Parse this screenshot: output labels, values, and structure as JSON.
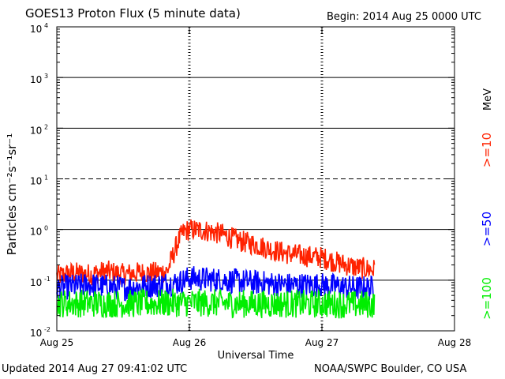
{
  "header": {
    "title": "GOES13 Proton Flux (5 minute data)",
    "begin": "Begin: 2014 Aug 25 0000 UTC"
  },
  "footer": {
    "updated": "Updated 2014 Aug 27 09:41:02 UTC",
    "credit": "NOAA/SWPC Boulder, CO USA"
  },
  "chart_data": {
    "type": "line",
    "title": "GOES13 Proton Flux (5 minute data)",
    "xlabel": "Universal Time",
    "ylabel": "Particles cm⁻²s⁻¹sr⁻¹",
    "yscale": "log",
    "ylim": [
      0.01,
      10000
    ],
    "xlim": [
      "2014-08-25",
      "2014-08-28"
    ],
    "x_ticks": [
      "Aug 25",
      "Aug 26",
      "Aug 27",
      "Aug 28"
    ],
    "y_ticks": [
      {
        "base": "10",
        "exp": "-2",
        "value": 0.01
      },
      {
        "base": "10",
        "exp": "-1",
        "value": 0.1
      },
      {
        "base": "10",
        "exp": "0",
        "value": 1
      },
      {
        "base": "10",
        "exp": "1",
        "value": 10
      },
      {
        "base": "10",
        "exp": "2",
        "value": 100
      },
      {
        "base": "10",
        "exp": "3",
        "value": 1000
      },
      {
        "base": "10",
        "exp": "4",
        "value": 10000
      }
    ],
    "threshold_lines": [
      {
        "value": 10,
        "style": "dashed"
      },
      {
        "value": 0.1,
        "style": "solid"
      },
      {
        "value": 1,
        "style": "solid"
      },
      {
        "value": 100,
        "style": "solid"
      },
      {
        "value": 1000,
        "style": "solid"
      }
    ],
    "legend_unit": "MeV",
    "series": [
      {
        "name": ">=10",
        "color": "#ff2200",
        "points": [
          [
            "2014-08-25 00:00",
            0.12
          ],
          [
            "2014-08-25 03:00",
            0.14
          ],
          [
            "2014-08-25 06:00",
            0.13
          ],
          [
            "2014-08-25 09:00",
            0.15
          ],
          [
            "2014-08-25 12:00",
            0.13
          ],
          [
            "2014-08-25 15:00",
            0.14
          ],
          [
            "2014-08-25 18:00",
            0.14
          ],
          [
            "2014-08-25 20:00",
            0.15
          ],
          [
            "2014-08-25 21:00",
            0.3
          ],
          [
            "2014-08-25 22:00",
            0.6
          ],
          [
            "2014-08-25 23:00",
            0.9
          ],
          [
            "2014-08-26 00:00",
            1.0
          ],
          [
            "2014-08-26 03:00",
            0.95
          ],
          [
            "2014-08-26 06:00",
            0.8
          ],
          [
            "2014-08-26 09:00",
            0.6
          ],
          [
            "2014-08-26 12:00",
            0.5
          ],
          [
            "2014-08-26 15:00",
            0.4
          ],
          [
            "2014-08-26 18:00",
            0.33
          ],
          [
            "2014-08-26 21:00",
            0.3
          ],
          [
            "2014-08-27 00:00",
            0.28
          ],
          [
            "2014-08-27 03:00",
            0.22
          ],
          [
            "2014-08-27 06:00",
            0.18
          ],
          [
            "2014-08-27 09:30",
            0.16
          ]
        ]
      },
      {
        "name": ">=50",
        "color": "#0000ff",
        "points": [
          [
            "2014-08-25 00:00",
            0.07
          ],
          [
            "2014-08-25 06:00",
            0.08
          ],
          [
            "2014-08-25 12:00",
            0.07
          ],
          [
            "2014-08-25 18:00",
            0.08
          ],
          [
            "2014-08-25 22:00",
            0.09
          ],
          [
            "2014-08-26 00:00",
            0.11
          ],
          [
            "2014-08-26 06:00",
            0.1
          ],
          [
            "2014-08-26 12:00",
            0.09
          ],
          [
            "2014-08-26 18:00",
            0.08
          ],
          [
            "2014-08-27 00:00",
            0.08
          ],
          [
            "2014-08-27 06:00",
            0.07
          ],
          [
            "2014-08-27 09:30",
            0.07
          ]
        ]
      },
      {
        "name": ">=100",
        "color": "#00ee00",
        "points": [
          [
            "2014-08-25 00:00",
            0.035
          ],
          [
            "2014-08-25 06:00",
            0.035
          ],
          [
            "2014-08-25 12:00",
            0.034
          ],
          [
            "2014-08-25 18:00",
            0.035
          ],
          [
            "2014-08-26 00:00",
            0.036
          ],
          [
            "2014-08-26 06:00",
            0.035
          ],
          [
            "2014-08-26 12:00",
            0.034
          ],
          [
            "2014-08-26 18:00",
            0.034
          ],
          [
            "2014-08-27 00:00",
            0.034
          ],
          [
            "2014-08-27 06:00",
            0.033
          ],
          [
            "2014-08-27 09:30",
            0.033
          ]
        ]
      }
    ]
  }
}
